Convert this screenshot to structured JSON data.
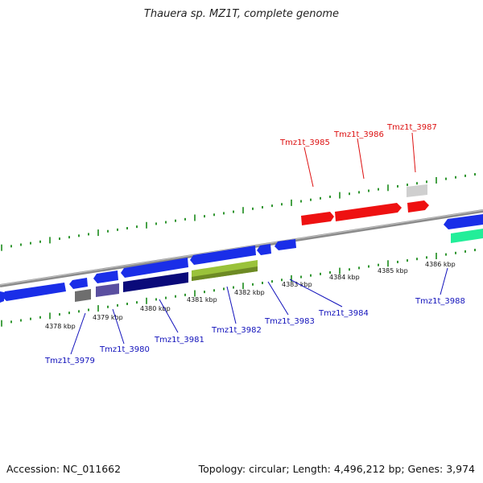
{
  "title": "Thauera sp. MZ1T, complete genome",
  "footer": {
    "accession": "Accession: NC_011662",
    "summary": "Topology: circular; Length: 4,496,212 bp; Genes: 3,974"
  },
  "colors": {
    "backbone": "#8c8c8c",
    "ticks": "#1a8a1a",
    "forward_label": "#dd1111",
    "reverse_label": "#1111bb",
    "blue_gene": "#1a2ee8",
    "red_gene": "#ee1111",
    "gray_gene": "#777777",
    "light_gray_gene": "#cfcfcf",
    "purple_gene": "#5a4fa0",
    "navy_gene": "#0a0a7a",
    "olive_gene": "#9ac23a",
    "teal_gene": "#22ee99"
  },
  "kbp_labels": [
    "4378 kbp",
    "4379 kbp",
    "4380 kbp",
    "4381 kbp",
    "4382 kbp",
    "4383 kbp",
    "4384 kbp",
    "4385 kbp",
    "4386 kbp"
  ],
  "gene_labels": {
    "forward": [
      "Tmz1t_3985",
      "Tmz1t_3986",
      "Tmz1t_3987"
    ],
    "reverse": [
      "Tmz1t_3979",
      "Tmz1t_3980",
      "Tmz1t_3981",
      "Tmz1t_3982",
      "Tmz1t_3983",
      "Tmz1t_3984",
      "Tmz1t_3988"
    ]
  }
}
